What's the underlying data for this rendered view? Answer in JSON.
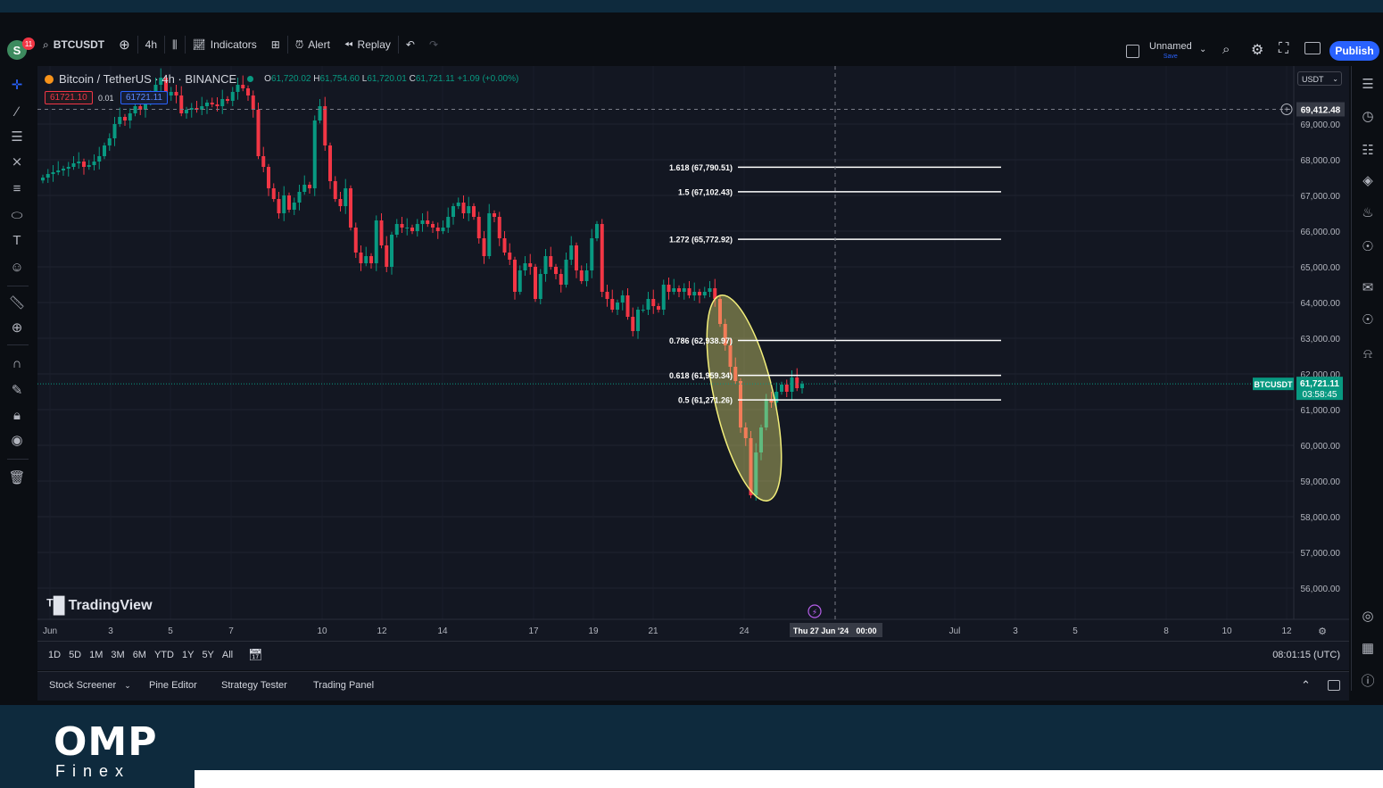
{
  "header": {
    "avatar_letter": "S",
    "notifications": "11",
    "symbol": "BTCUSDT",
    "interval": "4h",
    "indicators_label": "Indicators",
    "alert_label": "Alert",
    "replay_label": "Replay",
    "layout_name": "Unnamed",
    "layout_sub": "Save",
    "publish_label": "Publish"
  },
  "legend": {
    "title": "Bitcoin / TetherUS · 4h · BINANCE",
    "open": "61,720.02",
    "high": "61,754.60",
    "low": "61,720.01",
    "close": "61,721.11",
    "change": "+1.09 (+0.00%)",
    "sell_price": "61721.10",
    "spread": "0.01",
    "buy_price": "61721.11"
  },
  "price_axis": {
    "currency": "USDT",
    "crosshair_price": "69,412.48",
    "last_symbol": "BTCUSDT",
    "last_price": "61,721.11",
    "countdown": "03:58:45"
  },
  "time_axis": {
    "crosshair_label": "Thu 27 Jun '24",
    "crosshair_time": "00:00",
    "clock": "08:01:15 (UTC)"
  },
  "ranges": [
    "1D",
    "5D",
    "1M",
    "3M",
    "6M",
    "YTD",
    "1Y",
    "5Y",
    "All"
  ],
  "panels": [
    "Stock Screener",
    "Pine Editor",
    "Strategy Tester",
    "Trading Panel"
  ],
  "branding": {
    "tv_logo": "TradingView",
    "omp_top": "OMP",
    "omp_bottom": "Finex"
  },
  "colors": {
    "up": "#089981",
    "down": "#f23645",
    "background": "#131722",
    "accent": "#2962ff",
    "highlight": "#f2ee7a"
  },
  "chart_data": {
    "type": "candlestick",
    "title": "Bitcoin / TetherUS · 4h · BINANCE",
    "ylim": [
      55500,
      70000
    ],
    "y_ticks": [
      56000,
      57000,
      58000,
      59000,
      60000,
      61000,
      62000,
      63000,
      64000,
      65000,
      66000,
      67000,
      68000,
      69000
    ],
    "y_tick_labels": [
      "56,000.00",
      "57,000.00",
      "58,000.00",
      "59,000.00",
      "60,000.00",
      "61,000.00",
      "62,000.00",
      "63,000.00",
      "64,000.00",
      "65,000.00",
      "66,000.00",
      "67,000.00",
      "68,000.00",
      "69,000.00"
    ],
    "x_ticks": [
      "Jun",
      "3",
      "5",
      "7",
      "10",
      "12",
      "14",
      "17",
      "19",
      "21",
      "24",
      "Jul",
      "3",
      "5",
      "8",
      "10",
      "12"
    ],
    "fibonacci": [
      {
        "level": "1.618",
        "price": 67790.51,
        "label": "1.618 (67,790.51)"
      },
      {
        "level": "1.5",
        "price": 67102.43,
        "label": "1.5 (67,102.43)"
      },
      {
        "level": "1.272",
        "price": 65772.92,
        "label": "1.272 (65,772.92)"
      },
      {
        "level": "0.786",
        "price": 62938.97,
        "label": "0.786 (62,938.97)"
      },
      {
        "level": "0.618",
        "price": 61959.34,
        "label": "0.618 (61,959.34)"
      },
      {
        "level": "0.5",
        "price": 61271.26,
        "label": "0.5 (61,271.26)"
      }
    ],
    "closes": [
      67500,
      67600,
      67650,
      67700,
      67750,
      67800,
      67900,
      67950,
      67800,
      67850,
      67950,
      68100,
      68400,
      68600,
      69000,
      69200,
      69100,
      69300,
      69500,
      69400,
      69600,
      69800,
      70100,
      70300,
      69800,
      69900,
      69800,
      69300,
      69400,
      69450,
      69400,
      69500,
      69600,
      69550,
      69500,
      69700,
      69650,
      69900,
      70100,
      70000,
      69800,
      69400,
      68100,
      67800,
      67200,
      66900,
      66500,
      67000,
      66600,
      66800,
      67100,
      67300,
      67200,
      69100,
      69500,
      68400,
      67400,
      66900,
      66700,
      67200,
      66100,
      65400,
      65100,
      65300,
      65100,
      66300,
      65600,
      65000,
      65900,
      66200,
      66100,
      66100,
      66000,
      66200,
      66300,
      66200,
      66100,
      66000,
      66100,
      66400,
      66700,
      66800,
      66500,
      66700,
      66400,
      65800,
      65300,
      66500,
      66400,
      65800,
      65400,
      65200,
      64300,
      64900,
      65100,
      65000,
      64100,
      64800,
      65300,
      65000,
      64800,
      64500,
      65200,
      65600,
      64900,
      64600,
      64900,
      65800,
      66200,
      64300,
      64100,
      63800,
      64000,
      64200,
      63600,
      63200,
      63800,
      63800,
      64100,
      63900,
      63800,
      64500,
      64300,
      64400,
      64300,
      64400,
      64200,
      64300,
      64200,
      64300,
      64400,
      64100,
      63400,
      62800,
      62200,
      61800,
      60500,
      60200,
      58600,
      59800,
      60500,
      61300,
      61200,
      61500,
      61700,
      61500,
      61900,
      61600,
      61721
    ]
  }
}
